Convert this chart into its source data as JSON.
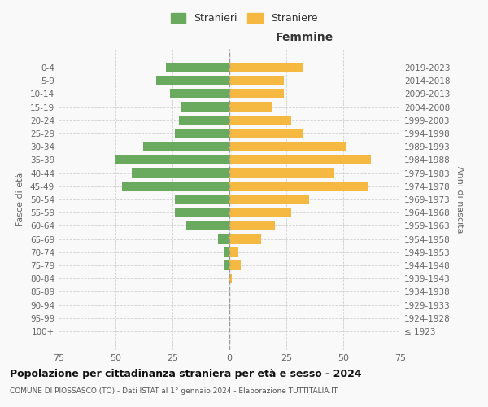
{
  "age_groups": [
    "100+",
    "95-99",
    "90-94",
    "85-89",
    "80-84",
    "75-79",
    "70-74",
    "65-69",
    "60-64",
    "55-59",
    "50-54",
    "45-49",
    "40-44",
    "35-39",
    "30-34",
    "25-29",
    "20-24",
    "15-19",
    "10-14",
    "5-9",
    "0-4"
  ],
  "birth_years": [
    "≤ 1923",
    "1924-1928",
    "1929-1933",
    "1934-1938",
    "1939-1943",
    "1944-1948",
    "1949-1953",
    "1954-1958",
    "1959-1963",
    "1964-1968",
    "1969-1973",
    "1974-1978",
    "1979-1983",
    "1984-1988",
    "1989-1993",
    "1994-1998",
    "1999-2003",
    "2004-2008",
    "2009-2013",
    "2014-2018",
    "2019-2023"
  ],
  "males": [
    0,
    0,
    0,
    0,
    0,
    2,
    2,
    5,
    19,
    24,
    24,
    47,
    43,
    50,
    38,
    24,
    22,
    21,
    26,
    32,
    28
  ],
  "females": [
    0,
    0,
    0,
    0,
    1,
    5,
    4,
    14,
    20,
    27,
    35,
    61,
    46,
    62,
    51,
    32,
    27,
    19,
    24,
    24,
    32
  ],
  "male_color": "#6aaa5e",
  "female_color": "#f5b942",
  "background_color": "#f9f9f9",
  "grid_color": "#cccccc",
  "title": "Popolazione per cittadinanza straniera per età e sesso - 2024",
  "subtitle": "COMUNE DI PIOSSASCO (TO) - Dati ISTAT al 1° gennaio 2024 - Elaborazione TUTTITALIA.IT",
  "right_label": "Femmine",
  "ylabel": "Fasce di età",
  "right_ylabel": "Anni di nascita",
  "legend_male": "Stranieri",
  "legend_female": "Straniere",
  "xlim": 75
}
